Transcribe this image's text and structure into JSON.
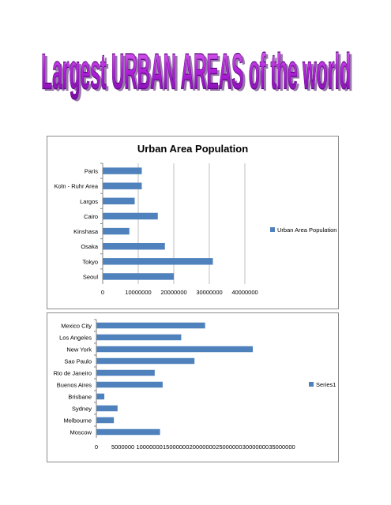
{
  "page": {
    "title": "Largest URBAN AREAS of the world"
  },
  "chart_data": [
    {
      "type": "bar",
      "orientation": "horizontal",
      "title": "Urban Area Population",
      "categories": [
        "Paris",
        "Koln - Ruhr Area",
        "Largos",
        "Cairo",
        "Kinshasa",
        "Osaka",
        "Tokyo",
        "Seoul"
      ],
      "series": [
        {
          "name": "Urban Area Population",
          "values": [
            11000000,
            11000000,
            9000000,
            15500000,
            7500000,
            17500000,
            31000000,
            20000000
          ]
        }
      ],
      "xlim": [
        0,
        40000000
      ],
      "xticks": [
        0,
        10000000,
        20000000,
        30000000,
        40000000
      ],
      "xtick_labels": [
        "0",
        "10000000",
        "20000000",
        "30000000",
        "40000000"
      ],
      "grid": "vertical",
      "legend": "right",
      "color": "#4f81bd"
    },
    {
      "type": "bar",
      "orientation": "horizontal",
      "title": "",
      "categories": [
        "Mexico City",
        "Los Angeles",
        "New York",
        "Sao Paulo",
        "Rio de Janeiro",
        "Buenos Aires",
        "Brisbane",
        "Sydney",
        "Melbourne",
        "Moscow"
      ],
      "series": [
        {
          "name": "Series1",
          "values": [
            20500000,
            16000000,
            29500000,
            18500000,
            11000000,
            12500000,
            1500000,
            4000000,
            3300000,
            12000000
          ]
        }
      ],
      "xlim": [
        0,
        35000000
      ],
      "xticks": [
        0,
        5000000,
        10000000,
        15000000,
        20000000,
        25000000,
        30000000,
        35000000
      ],
      "xtick_labels": [
        "0",
        "5000000",
        "10000000",
        "15000000",
        "20000000",
        "25000000",
        "30000000",
        "35000000"
      ],
      "grid": "none",
      "legend": "right",
      "color": "#4f81bd"
    }
  ]
}
